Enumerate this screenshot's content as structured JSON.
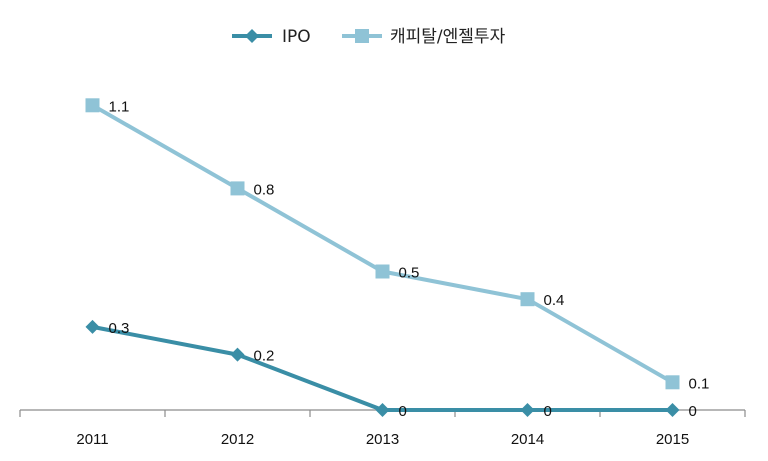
{
  "chart_data": {
    "type": "line",
    "title": "",
    "xlabel": "",
    "ylabel": "",
    "categories": [
      "2011",
      "2012",
      "2013",
      "2014",
      "2015"
    ],
    "ylim": [
      0,
      1.2
    ],
    "grid": false,
    "legend": "top-center",
    "series": [
      {
        "name": "IPO",
        "values": [
          0.3,
          0.2,
          0,
          0,
          0
        ],
        "labels": [
          "0.3",
          "0.2",
          "0",
          "0",
          "0"
        ],
        "color": "#3a8ea6",
        "marker": "diamond"
      },
      {
        "name": "캐피탈/엔젤투자",
        "values": [
          1.1,
          0.8,
          0.5,
          0.4,
          0.1
        ],
        "labels": [
          "1.1",
          "0.8",
          "0.5",
          "0.4",
          "0.1"
        ],
        "color": "#8fc3d6",
        "marker": "square"
      }
    ]
  }
}
